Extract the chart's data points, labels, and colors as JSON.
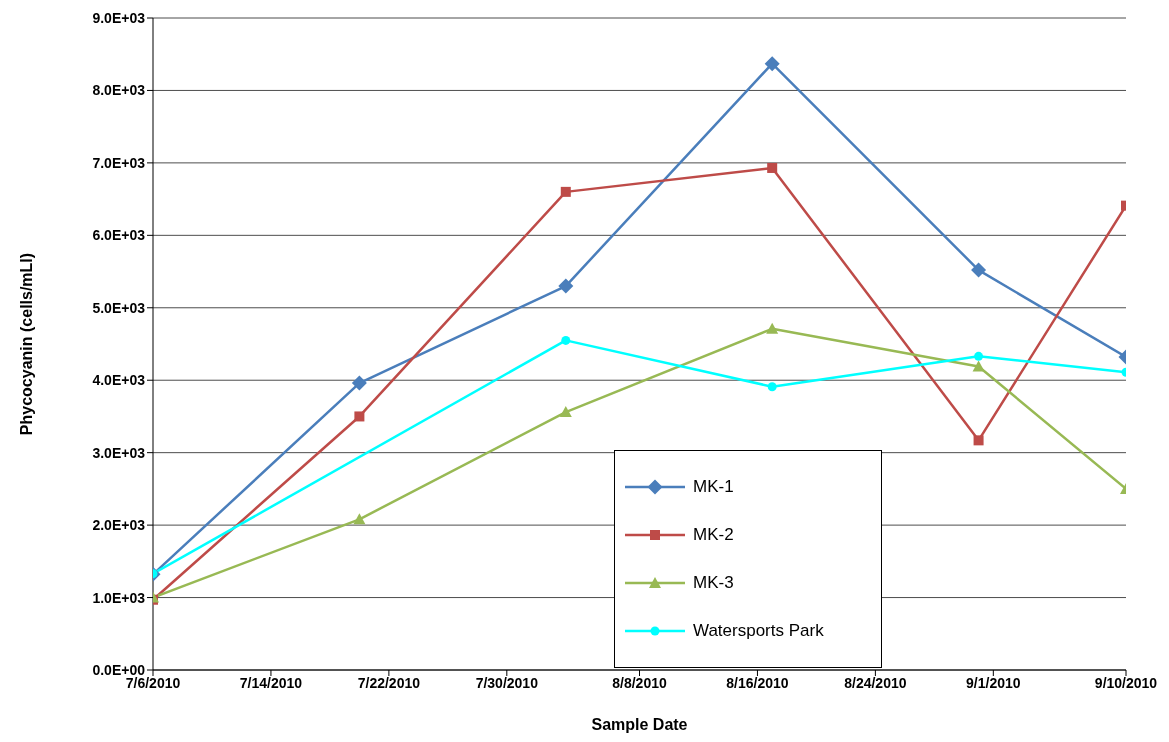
{
  "chart_data": {
    "type": "line",
    "xlabel": "Sample Date",
    "ylabel": "Phycocyanin (cells/mLl)",
    "xlim": [
      "2010-07-06",
      "2010-09-10"
    ],
    "xticks": [
      {
        "value": "2010-07-06",
        "label": "7/6/2010"
      },
      {
        "value": "2010-07-14",
        "label": "7/14/2010"
      },
      {
        "value": "2010-07-22",
        "label": "7/22/2010"
      },
      {
        "value": "2010-07-30",
        "label": "7/30/2010"
      },
      {
        "value": "2010-08-08",
        "label": "8/8/2010"
      },
      {
        "value": "2010-08-16",
        "label": "8/16/2010"
      },
      {
        "value": "2010-08-24",
        "label": "8/24/2010"
      },
      {
        "value": "2010-09-01",
        "label": "9/1/2010"
      },
      {
        "value": "2010-09-10",
        "label": "9/10/2010"
      }
    ],
    "ylim": [
      0,
      9000
    ],
    "yticks": [
      {
        "value": 0,
        "label": "0.0E+00"
      },
      {
        "value": 1000,
        "label": "1.0E+03"
      },
      {
        "value": 2000,
        "label": "2.0E+03"
      },
      {
        "value": 3000,
        "label": "3.0E+03"
      },
      {
        "value": 4000,
        "label": "4.0E+03"
      },
      {
        "value": 5000,
        "label": "5.0E+03"
      },
      {
        "value": 6000,
        "label": "6.0E+03"
      },
      {
        "value": 7000,
        "label": "7.0E+03"
      },
      {
        "value": 8000,
        "label": "8.0E+03"
      },
      {
        "value": 9000,
        "label": "9.0E+03"
      }
    ],
    "grid": "y",
    "legend": "bottom right",
    "x": [
      "2010-07-06",
      "2010-07-20",
      "2010-08-03",
      "2010-08-17",
      "2010-08-31",
      "2010-09-10"
    ],
    "series": [
      {
        "name": "MK-1",
        "color": "#4a7ebb",
        "marker": "diamond",
        "values": [
          1320,
          3960,
          5300,
          8370,
          5520,
          4320
        ]
      },
      {
        "name": "MK-2",
        "color": "#be4b48",
        "marker": "square",
        "values": [
          970,
          3500,
          6600,
          6930,
          3170,
          6410
        ]
      },
      {
        "name": "MK-3",
        "color": "#98b954",
        "marker": "triangle",
        "values": [
          1000,
          2080,
          3560,
          4710,
          4190,
          2500
        ]
      },
      {
        "name": "Watersports Park",
        "color": "#00ffff",
        "marker": "circle",
        "x": [
          "2010-07-06",
          "2010-08-03",
          "2010-08-17",
          "2010-08-31",
          "2010-09-10"
        ],
        "values": [
          1330,
          4550,
          3910,
          4330,
          4110
        ]
      }
    ]
  }
}
